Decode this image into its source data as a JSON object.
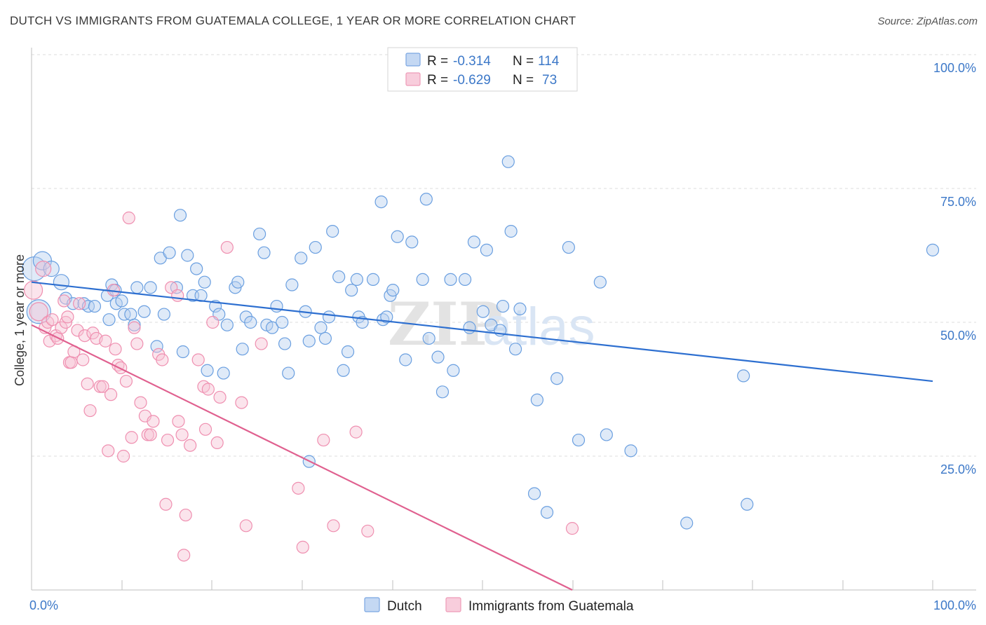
{
  "header": {
    "title": "DUTCH VS IMMIGRANTS FROM GUATEMALA COLLEGE, 1 YEAR OR MORE CORRELATION CHART",
    "source": "Source: ZipAtlas.com"
  },
  "watermark": "ZIPatlas",
  "chart_data": {
    "type": "scatter",
    "ylabel": "College, 1 year or more",
    "xlim": [
      0,
      100
    ],
    "ylim": [
      0,
      100
    ],
    "x_tick_labels": [
      "0.0%",
      "100.0%"
    ],
    "y_ticks": [
      25,
      50,
      75,
      100
    ],
    "y_tick_labels": [
      "25.0%",
      "50.0%",
      "75.0%",
      "100.0%"
    ],
    "grid": "horizontal dashed",
    "legend_position": "top-center",
    "colors": {
      "dutch": "#6a9fe0",
      "guatemala": "#ef8fb0",
      "dutch_line": "#2d6fd0",
      "guatemala_line": "#e0608f"
    },
    "legend": [
      {
        "r_label": "R =",
        "r_value": "-0.314",
        "n_label": "N =",
        "n_value": "114"
      },
      {
        "r_label": "R =",
        "r_value": "-0.629",
        "n_label": "N =",
        "n_value": "73"
      }
    ],
    "series": [
      {
        "name": "Dutch",
        "trend": {
          "x": [
            0,
            100
          ],
          "y": [
            57.5,
            39
          ]
        },
        "points": [
          [
            0.3,
            60,
            5
          ],
          [
            0.8,
            52,
            5
          ],
          [
            1.2,
            61.5,
            3
          ],
          [
            2.2,
            60,
            2
          ],
          [
            3.3,
            57.5,
            2
          ],
          [
            3.8,
            54.5,
            1
          ],
          [
            4.6,
            53.5,
            1
          ],
          [
            5.8,
            53.5,
            1
          ],
          [
            6.3,
            53,
            1
          ],
          [
            7,
            53,
            1
          ],
          [
            8.4,
            55,
            1
          ],
          [
            8.6,
            50.5,
            1
          ],
          [
            8.9,
            57,
            1
          ],
          [
            9.3,
            56,
            1
          ],
          [
            9.4,
            53.5,
            1
          ],
          [
            10,
            54,
            1
          ],
          [
            10.3,
            51.5,
            1
          ],
          [
            11,
            51.5,
            1
          ],
          [
            11.4,
            49.5,
            1
          ],
          [
            11.7,
            56.5,
            1
          ],
          [
            12.5,
            52,
            1
          ],
          [
            13.2,
            56.5,
            1
          ],
          [
            13.9,
            45.5,
            1
          ],
          [
            14.3,
            62,
            1
          ],
          [
            14.7,
            51.5,
            1
          ],
          [
            15.3,
            63,
            1
          ],
          [
            16.1,
            56.5,
            1
          ],
          [
            16.5,
            70,
            1
          ],
          [
            16.8,
            44.5,
            1
          ],
          [
            17.3,
            62.5,
            1
          ],
          [
            17.9,
            55,
            1
          ],
          [
            18.3,
            60,
            1
          ],
          [
            18.8,
            55,
            1
          ],
          [
            19.2,
            57.5,
            1
          ],
          [
            19.5,
            41,
            1
          ],
          [
            20.4,
            53,
            1
          ],
          [
            20.8,
            51.5,
            1
          ],
          [
            21.3,
            40.5,
            1
          ],
          [
            21.7,
            49.5,
            1
          ],
          [
            22.6,
            56.5,
            1
          ],
          [
            22.9,
            57.5,
            1
          ],
          [
            23.4,
            45,
            1
          ],
          [
            23.8,
            51,
            1
          ],
          [
            24.3,
            50,
            1
          ],
          [
            25.3,
            66.5,
            1
          ],
          [
            25.8,
            63,
            1
          ],
          [
            26.1,
            49.5,
            1
          ],
          [
            26.7,
            49,
            1
          ],
          [
            27.2,
            53,
            1
          ],
          [
            27.8,
            50,
            1
          ],
          [
            28.1,
            46,
            1
          ],
          [
            28.5,
            40.5,
            1
          ],
          [
            28.9,
            57,
            1
          ],
          [
            29.9,
            62,
            1
          ],
          [
            30.4,
            52,
            1
          ],
          [
            30.8,
            46.5,
            1
          ],
          [
            31.5,
            64,
            1
          ],
          [
            32.1,
            49,
            1
          ],
          [
            32.6,
            47,
            1
          ],
          [
            33,
            51,
            1
          ],
          [
            33.4,
            67,
            1
          ],
          [
            34.1,
            58.5,
            1
          ],
          [
            34.6,
            41,
            1
          ],
          [
            35.1,
            44.5,
            1
          ],
          [
            35.5,
            56,
            1
          ],
          [
            36.1,
            58,
            1
          ],
          [
            36.3,
            51,
            1
          ],
          [
            36.7,
            50,
            1
          ],
          [
            37.9,
            58,
            1
          ],
          [
            38.8,
            72.5,
            1
          ],
          [
            39,
            50.5,
            1
          ],
          [
            39.4,
            51,
            1
          ],
          [
            39.8,
            55,
            1
          ],
          [
            40.1,
            56,
            1
          ],
          [
            40.6,
            66,
            1
          ],
          [
            41.5,
            43,
            1
          ],
          [
            42.2,
            65,
            1
          ],
          [
            43.4,
            58,
            1
          ],
          [
            43.8,
            73,
            1
          ],
          [
            44.1,
            47,
            1
          ],
          [
            45.1,
            43.5,
            1
          ],
          [
            45.6,
            37,
            1
          ],
          [
            46.5,
            58,
            1
          ],
          [
            46.8,
            41,
            1
          ],
          [
            48.1,
            58,
            1
          ],
          [
            48.6,
            49,
            1
          ],
          [
            49.1,
            65,
            1
          ],
          [
            50.1,
            52,
            1
          ],
          [
            50.5,
            63.5,
            1
          ],
          [
            51,
            49.5,
            1
          ],
          [
            52,
            48.5,
            1
          ],
          [
            52.3,
            53,
            1
          ],
          [
            52.9,
            80,
            1
          ],
          [
            53.2,
            67,
            1
          ],
          [
            53.7,
            45,
            1
          ],
          [
            54.2,
            52.5,
            1
          ],
          [
            56.1,
            35.5,
            1
          ],
          [
            57.2,
            14.5,
            1
          ],
          [
            58.3,
            39.5,
            1
          ],
          [
            59.6,
            64,
            1
          ],
          [
            60.7,
            28,
            1
          ],
          [
            63.1,
            57.5,
            1
          ],
          [
            63.8,
            29,
            1
          ],
          [
            66.5,
            26,
            1
          ],
          [
            72.7,
            12.5,
            1
          ],
          [
            79.4,
            16,
            1
          ],
          [
            79,
            40,
            1
          ],
          [
            100,
            63.5,
            1
          ],
          [
            55.8,
            18,
            1
          ],
          [
            30.8,
            24,
            1
          ]
        ]
      },
      {
        "name": "Immigrants from Guatemala",
        "trend": {
          "x": [
            0,
            60
          ],
          "y": [
            49.5,
            0
          ]
        },
        "points": [
          [
            0.2,
            56,
            3
          ],
          [
            0.8,
            52,
            3
          ],
          [
            1.3,
            60,
            2
          ],
          [
            1.5,
            49,
            1
          ],
          [
            1.8,
            50,
            1
          ],
          [
            2,
            46.5,
            1
          ],
          [
            2.3,
            50.5,
            1
          ],
          [
            2.7,
            47.5,
            1
          ],
          [
            2.9,
            47,
            1
          ],
          [
            3.3,
            49,
            1
          ],
          [
            3.6,
            54,
            1
          ],
          [
            3.8,
            50,
            1
          ],
          [
            4,
            51,
            1
          ],
          [
            4.2,
            42.5,
            1
          ],
          [
            4.4,
            42.5,
            1
          ],
          [
            4.7,
            44.5,
            1
          ],
          [
            5.1,
            48.5,
            1
          ],
          [
            5.3,
            53.5,
            1
          ],
          [
            5.7,
            43,
            1
          ],
          [
            5.9,
            47.5,
            1
          ],
          [
            6.2,
            38.5,
            1
          ],
          [
            6.5,
            33.5,
            1
          ],
          [
            6.8,
            48,
            1
          ],
          [
            7.2,
            47,
            1
          ],
          [
            7.6,
            38,
            1
          ],
          [
            7.9,
            38,
            1
          ],
          [
            8.2,
            46.5,
            1
          ],
          [
            8.5,
            26,
            1
          ],
          [
            8.8,
            36.5,
            1
          ],
          [
            9.1,
            56,
            1
          ],
          [
            9.3,
            45,
            1
          ],
          [
            9.6,
            42,
            1
          ],
          [
            9.9,
            41.5,
            1
          ],
          [
            10.2,
            25,
            1
          ],
          [
            10.5,
            39,
            1
          ],
          [
            10.8,
            69.5,
            1
          ],
          [
            11.1,
            28.5,
            1
          ],
          [
            11.4,
            49,
            1
          ],
          [
            11.7,
            46,
            1
          ],
          [
            12.1,
            35,
            1
          ],
          [
            12.6,
            32.5,
            1
          ],
          [
            12.9,
            29,
            1
          ],
          [
            13.2,
            29,
            1
          ],
          [
            13.5,
            31.5,
            1
          ],
          [
            14.1,
            44,
            1
          ],
          [
            14.5,
            43,
            1
          ],
          [
            14.9,
            16,
            1
          ],
          [
            15.1,
            28,
            1
          ],
          [
            15.5,
            56.5,
            1
          ],
          [
            16.3,
            31.5,
            1
          ],
          [
            16.7,
            29,
            1
          ],
          [
            16.9,
            6.5,
            1
          ],
          [
            17.1,
            14,
            1
          ],
          [
            17.6,
            27,
            1
          ],
          [
            18.5,
            43,
            1
          ],
          [
            19.1,
            38,
            1
          ],
          [
            19.3,
            30,
            1
          ],
          [
            19.6,
            37.5,
            1
          ],
          [
            20.1,
            50,
            1
          ],
          [
            20.6,
            27.5,
            1
          ],
          [
            20.9,
            36,
            1
          ],
          [
            21.7,
            64,
            1
          ],
          [
            23.3,
            35,
            1
          ],
          [
            23.8,
            12,
            1
          ],
          [
            25.5,
            46,
            1
          ],
          [
            29.6,
            19,
            1
          ],
          [
            30.1,
            8,
            1
          ],
          [
            32.4,
            28,
            1
          ],
          [
            33.5,
            12,
            1
          ],
          [
            36,
            29.5,
            1
          ],
          [
            37.3,
            11,
            1
          ],
          [
            60,
            11.5,
            1
          ],
          [
            16.2,
            55,
            1
          ]
        ]
      }
    ]
  }
}
